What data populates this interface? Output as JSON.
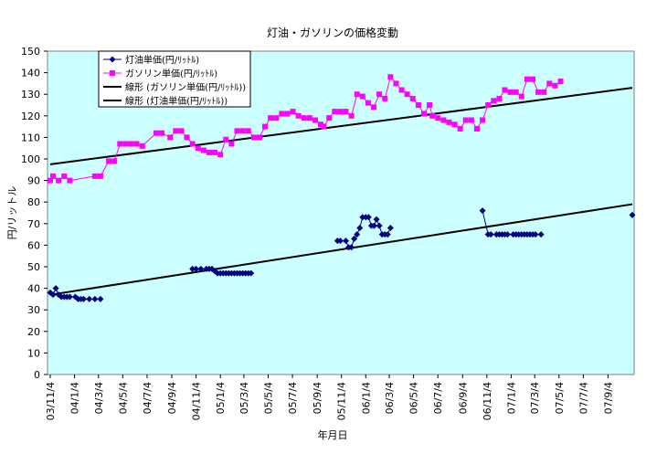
{
  "chart_data": {
    "type": "scatter",
    "title": "灯油・ガソリンの価格変動",
    "xlabel": "年月日",
    "ylabel": "円/リットル",
    "ylim": [
      0,
      150
    ],
    "yticks": [
      0,
      10,
      20,
      30,
      40,
      50,
      60,
      70,
      80,
      90,
      100,
      110,
      120,
      130,
      140,
      150
    ],
    "xlim": [
      "03/11/4",
      "07/11/4"
    ],
    "xticks": [
      "03/11/4",
      "04/1/4",
      "04/3/4",
      "04/5/4",
      "04/7/4",
      "04/9/4",
      "04/11/4",
      "05/1/4",
      "05/3/4",
      "05/5/4",
      "05/7/4",
      "05/9/4",
      "05/11/4",
      "06/1/4",
      "06/3/4",
      "06/5/4",
      "06/7/4",
      "06/9/4",
      "06/11/4",
      "07/1/4",
      "07/3/4",
      "07/5/4",
      "07/7/4",
      "07/9/4"
    ],
    "grid": false,
    "legend_position": "top-left",
    "background": "#ccffff",
    "series": [
      {
        "name": "灯油単価(円/ﾘｯﾄﾙ)",
        "marker": "diamond",
        "color": "#000080",
        "line": "gap",
        "points": [
          [
            "2003-11-04",
            38
          ],
          [
            "2003-11-11",
            37
          ],
          [
            "2003-11-18",
            40
          ],
          [
            "2003-11-25",
            37
          ],
          [
            "2003-12-02",
            36
          ],
          [
            "2003-12-09",
            36
          ],
          [
            "2003-12-16",
            36
          ],
          [
            "2003-12-23",
            36
          ],
          [
            "2004-01-06",
            36
          ],
          [
            "2004-01-13",
            35
          ],
          [
            "2004-01-20",
            35
          ],
          [
            "2004-01-27",
            35
          ],
          [
            "2004-02-10",
            35
          ],
          [
            "2004-02-24",
            35
          ],
          [
            "2004-03-09",
            35
          ],
          null,
          [
            "2004-10-26",
            49
          ],
          [
            "2004-11-04",
            49
          ],
          [
            "2004-11-16",
            49
          ],
          [
            "2004-11-30",
            49
          ],
          [
            "2004-12-07",
            49
          ],
          [
            "2004-12-14",
            49
          ],
          [
            "2004-12-21",
            48
          ],
          [
            "2004-12-28",
            47
          ],
          [
            "2005-01-04",
            47
          ],
          [
            "2005-01-11",
            47
          ],
          [
            "2005-01-18",
            47
          ],
          [
            "2005-01-25",
            47
          ],
          [
            "2005-02-01",
            47
          ],
          [
            "2005-02-08",
            47
          ],
          [
            "2005-02-15",
            47
          ],
          [
            "2005-02-22",
            47
          ],
          [
            "2005-03-01",
            47
          ],
          [
            "2005-03-08",
            47
          ],
          [
            "2005-03-15",
            47
          ],
          [
            "2005-03-22",
            47
          ],
          null,
          [
            "2005-10-25",
            62
          ],
          [
            "2005-11-01",
            62
          ],
          [
            "2005-11-15",
            62
          ],
          [
            "2005-11-22",
            59
          ],
          [
            "2005-11-29",
            59
          ],
          [
            "2005-12-06",
            63
          ],
          [
            "2005-12-13",
            65
          ],
          [
            "2005-12-20",
            68
          ],
          [
            "2005-12-27",
            73
          ],
          [
            "2006-01-04",
            73
          ],
          [
            "2006-01-11",
            73
          ],
          [
            "2006-01-18",
            69
          ],
          [
            "2006-01-25",
            69
          ],
          [
            "2006-01-31",
            72
          ],
          [
            "2006-02-07",
            69
          ],
          [
            "2006-02-14",
            65
          ],
          [
            "2006-02-21",
            65
          ],
          [
            "2006-02-28",
            65
          ],
          [
            "2006-03-07",
            68
          ],
          null,
          [
            "2006-10-24",
            76
          ],
          [
            "2006-11-07",
            65
          ],
          [
            "2006-11-14",
            65
          ],
          [
            "2006-11-28",
            65
          ],
          [
            "2006-12-05",
            65
          ],
          [
            "2006-12-12",
            65
          ],
          [
            "2006-12-19",
            65
          ],
          [
            "2006-12-26",
            65
          ],
          [
            "2007-01-09",
            65
          ],
          [
            "2007-01-16",
            65
          ],
          [
            "2007-01-23",
            65
          ],
          [
            "2007-01-30",
            65
          ],
          [
            "2007-02-06",
            65
          ],
          [
            "2007-02-13",
            65
          ],
          [
            "2007-02-20",
            65
          ],
          [
            "2007-02-27",
            65
          ],
          [
            "2007-03-06",
            65
          ],
          [
            "2007-03-20",
            65
          ],
          null,
          [
            "2007-11-04",
            74
          ]
        ]
      },
      {
        "name": "ガソリン単価(円/ﾘｯﾄﾙ)",
        "marker": "square",
        "color": "#ff00ff",
        "line": "connected",
        "points": [
          [
            "2003-11-04",
            90
          ],
          [
            "2003-11-11",
            92
          ],
          [
            "2003-11-25",
            90
          ],
          [
            "2003-12-09",
            92
          ],
          [
            "2003-12-23",
            90
          ],
          [
            "2004-02-24",
            92
          ],
          [
            "2004-03-09",
            92
          ],
          [
            "2004-03-30",
            99
          ],
          [
            "2004-04-13",
            99
          ],
          [
            "2004-04-27",
            107
          ],
          [
            "2004-05-11",
            107
          ],
          [
            "2004-05-25",
            107
          ],
          [
            "2004-06-08",
            107
          ],
          [
            "2004-06-22",
            106
          ],
          [
            "2004-07-27",
            112
          ],
          [
            "2004-08-10",
            112
          ],
          [
            "2004-08-31",
            110
          ],
          [
            "2004-09-14",
            113
          ],
          [
            "2004-09-28",
            113
          ],
          [
            "2004-10-12",
            110
          ],
          [
            "2004-10-26",
            107
          ],
          [
            "2004-11-09",
            105
          ],
          [
            "2004-11-23",
            104
          ],
          [
            "2004-12-07",
            103
          ],
          [
            "2004-12-21",
            103
          ],
          [
            "2005-01-04",
            102
          ],
          [
            "2005-01-18",
            109
          ],
          [
            "2005-02-01",
            107
          ],
          [
            "2005-02-15",
            113
          ],
          [
            "2005-03-01",
            113
          ],
          [
            "2005-03-15",
            113
          ],
          [
            "2005-03-29",
            110
          ],
          [
            "2005-04-12",
            110
          ],
          [
            "2005-04-26",
            115
          ],
          [
            "2005-05-10",
            119
          ],
          [
            "2005-05-24",
            119
          ],
          [
            "2005-06-07",
            121
          ],
          [
            "2005-06-21",
            121
          ],
          [
            "2005-07-05",
            122
          ],
          [
            "2005-07-19",
            120
          ],
          [
            "2005-08-02",
            119
          ],
          [
            "2005-08-16",
            119
          ],
          [
            "2005-08-30",
            118
          ],
          [
            "2005-09-13",
            116
          ],
          [
            "2005-09-20",
            115
          ],
          [
            "2005-10-04",
            119
          ],
          [
            "2005-10-18",
            122
          ],
          [
            "2005-11-01",
            122
          ],
          [
            "2005-11-15",
            122
          ],
          [
            "2005-11-29",
            120
          ],
          [
            "2005-12-13",
            130
          ],
          [
            "2005-12-27",
            129
          ],
          [
            "2006-01-10",
            126
          ],
          [
            "2006-01-24",
            124
          ],
          [
            "2006-02-07",
            130
          ],
          [
            "2006-02-21",
            128
          ],
          [
            "2006-03-07",
            138
          ],
          [
            "2006-03-21",
            135
          ],
          [
            "2006-04-04",
            132
          ],
          [
            "2006-04-18",
            130
          ],
          [
            "2006-05-02",
            128
          ],
          [
            "2006-05-16",
            125
          ],
          [
            "2006-05-30",
            121
          ],
          [
            "2006-06-13",
            125
          ],
          [
            "2006-06-20",
            120
          ],
          [
            "2006-07-04",
            119
          ],
          [
            "2006-07-18",
            118
          ],
          [
            "2006-08-01",
            117
          ],
          [
            "2006-08-15",
            116
          ],
          [
            "2006-08-29",
            114
          ],
          [
            "2006-09-12",
            118
          ],
          [
            "2006-09-26",
            118
          ],
          [
            "2006-10-10",
            114
          ],
          [
            "2006-10-24",
            118
          ],
          [
            "2006-11-07",
            125
          ],
          [
            "2006-11-21",
            127
          ],
          [
            "2006-12-05",
            128
          ],
          [
            "2006-12-19",
            132
          ],
          [
            "2007-01-02",
            131
          ],
          [
            "2007-01-16",
            131
          ],
          [
            "2007-01-30",
            129
          ],
          [
            "2007-02-13",
            137
          ],
          [
            "2007-02-27",
            137
          ],
          [
            "2007-03-13",
            131
          ],
          [
            "2007-03-27",
            131
          ],
          [
            "2007-04-10",
            135
          ],
          [
            "2007-04-24",
            134
          ],
          [
            "2007-05-08",
            136
          ]
        ]
      },
      {
        "name": "線形 (ガソリン単価(円/ﾘｯﾄﾙ))",
        "type": "trendline",
        "color": "#000000",
        "points": [
          [
            "2003-11-04",
            97.5
          ],
          [
            "2007-11-04",
            133
          ]
        ]
      },
      {
        "name": "線形 (灯油単価(円/ﾘｯﾄﾙ))",
        "type": "trendline",
        "color": "#000000",
        "points": [
          [
            "2003-11-04",
            37
          ],
          [
            "2007-11-04",
            79
          ]
        ]
      }
    ]
  }
}
